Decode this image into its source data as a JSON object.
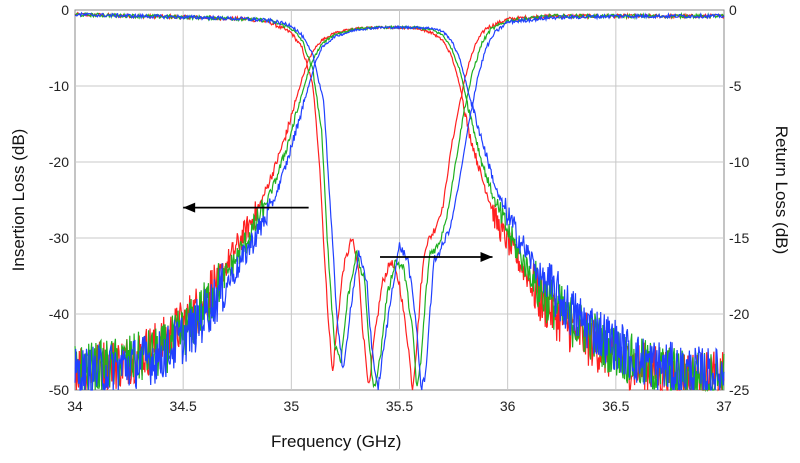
{
  "chart_data": {
    "type": "line",
    "title": "",
    "xlabel": "Frequency (GHz)",
    "ylabel": "Insertion Loss (dB)",
    "ylabel_right": "Return Loss (dB)",
    "xlim": [
      34,
      37
    ],
    "ylim": [
      -50,
      0
    ],
    "ylim_right": [
      -25,
      0
    ],
    "grid": true,
    "x_ticks": [
      34,
      34.5,
      35,
      35.5,
      36,
      36.5,
      37
    ],
    "x_tick_labels": [
      "34",
      "34.5",
      "35",
      "35.5",
      "36",
      "36.5",
      "37"
    ],
    "y_ticks": [
      0,
      -10,
      -20,
      -30,
      -40,
      -50
    ],
    "y_tick_labels": [
      "0",
      "-10",
      "-20",
      "-30",
      "-40",
      "-50"
    ],
    "y_right_ticks": [
      0,
      -5,
      -10,
      -15,
      -20,
      -25
    ],
    "y_right_tick_labels": [
      "0",
      "-5",
      "-10",
      "-15",
      "-20",
      "-25"
    ],
    "colors": [
      "#ff2020",
      "#20b020",
      "#2040ff"
    ],
    "series": [
      {
        "name": "red",
        "color": "#ff2020",
        "insertion_loss": {
          "x": [
            34.0,
            34.2,
            34.4,
            34.55,
            34.65,
            34.75,
            34.85,
            34.92,
            34.98,
            35.02,
            35.05,
            35.08,
            35.11,
            35.14,
            35.2,
            35.3,
            35.4,
            35.5,
            35.58,
            35.65,
            35.7,
            35.74,
            35.78,
            35.82,
            35.88,
            35.95,
            36.05,
            36.15,
            36.3,
            36.45,
            36.6,
            36.8,
            37.0
          ],
          "y": [
            -47,
            -46.5,
            -44,
            -40,
            -36,
            -31,
            -26,
            -21,
            -16,
            -12,
            -9,
            -6.5,
            -5,
            -4,
            -3,
            -2.4,
            -2.3,
            -2.3,
            -2.4,
            -3,
            -4,
            -6,
            -10,
            -16,
            -22,
            -28,
            -33,
            -38,
            -42,
            -45,
            -47,
            -48,
            -48.5
          ]
        },
        "return_loss": {
          "x": [
            34.0,
            34.3,
            34.6,
            34.8,
            34.9,
            35.0,
            35.05,
            35.1,
            35.13,
            35.16,
            35.19,
            35.21,
            35.24,
            35.28,
            35.31,
            35.33,
            35.36,
            35.38,
            35.42,
            35.46,
            35.5,
            35.54,
            35.56,
            35.58,
            35.6,
            35.62,
            35.66,
            35.7,
            35.74,
            35.78,
            35.82,
            35.86,
            35.9,
            36.0,
            36.2,
            36.5,
            36.8,
            37.0
          ],
          "y": [
            -0.3,
            -0.4,
            -0.5,
            -0.6,
            -0.8,
            -1.5,
            -2.5,
            -5,
            -10,
            -18,
            -24,
            -21,
            -17,
            -15,
            -17,
            -21,
            -25,
            -22,
            -18,
            -16.5,
            -18,
            -22,
            -25,
            -22,
            -18,
            -15.5,
            -14.5,
            -13,
            -9,
            -6,
            -3.5,
            -2,
            -1.2,
            -0.6,
            -0.4,
            -0.4,
            -0.4,
            -0.4
          ]
        }
      },
      {
        "name": "green",
        "color": "#20b020",
        "insertion_loss": {
          "x": [
            34.0,
            34.2,
            34.4,
            34.55,
            34.65,
            34.75,
            34.85,
            34.92,
            34.98,
            35.02,
            35.05,
            35.08,
            35.11,
            35.14,
            35.2,
            35.3,
            35.4,
            35.5,
            35.58,
            35.65,
            35.7,
            35.74,
            35.78,
            35.82,
            35.88,
            35.95,
            36.05,
            36.15,
            36.3,
            36.45,
            36.6,
            36.8,
            37.0
          ],
          "y": [
            -47.5,
            -46.5,
            -45,
            -41,
            -37,
            -32.5,
            -27.5,
            -23,
            -18,
            -14,
            -11,
            -8,
            -6,
            -4.5,
            -3.2,
            -2.5,
            -2.3,
            -2.3,
            -2.3,
            -2.6,
            -3.3,
            -5,
            -8,
            -13,
            -20,
            -26,
            -32,
            -37,
            -41,
            -44,
            -46.5,
            -48,
            -48.5
          ]
        },
        "return_loss": {
          "x": [
            34.0,
            34.3,
            34.6,
            34.8,
            34.9,
            35.0,
            35.05,
            35.1,
            35.14,
            35.17,
            35.2,
            35.23,
            35.26,
            35.3,
            35.34,
            35.36,
            35.38,
            35.41,
            35.44,
            35.48,
            35.52,
            35.56,
            35.58,
            35.6,
            35.62,
            35.64,
            35.68,
            35.72,
            35.76,
            35.8,
            35.84,
            35.88,
            35.92,
            36.0,
            36.2,
            36.5,
            36.8,
            37.0
          ],
          "y": [
            -0.3,
            -0.4,
            -0.5,
            -0.6,
            -0.7,
            -1.2,
            -2,
            -4,
            -8,
            -16,
            -22,
            -23,
            -19,
            -16,
            -18,
            -22,
            -25,
            -23,
            -19,
            -16.5,
            -17,
            -21,
            -25,
            -23,
            -19,
            -16,
            -15.5,
            -13.5,
            -10,
            -6.5,
            -4,
            -2.2,
            -1.3,
            -0.7,
            -0.4,
            -0.4,
            -0.4,
            -0.4
          ]
        }
      },
      {
        "name": "blue",
        "color": "#2040ff",
        "insertion_loss": {
          "x": [
            34.0,
            34.2,
            34.4,
            34.55,
            34.65,
            34.75,
            34.85,
            34.92,
            34.98,
            35.02,
            35.05,
            35.08,
            35.11,
            35.14,
            35.2,
            35.3,
            35.4,
            35.5,
            35.58,
            35.65,
            35.7,
            35.74,
            35.78,
            35.82,
            35.88,
            35.95,
            36.05,
            36.15,
            36.3,
            36.45,
            36.6,
            36.8,
            37.0
          ],
          "y": [
            -48,
            -47,
            -45.5,
            -42,
            -38,
            -34,
            -29,
            -25,
            -20,
            -16,
            -13,
            -10,
            -7,
            -5,
            -3.5,
            -2.6,
            -2.3,
            -2.3,
            -2.3,
            -2.4,
            -2.8,
            -4,
            -6.5,
            -11,
            -17,
            -24,
            -30,
            -35,
            -40,
            -43,
            -46,
            -47.5,
            -48
          ]
        },
        "return_loss": {
          "x": [
            34.0,
            34.3,
            34.6,
            34.8,
            34.9,
            35.0,
            35.05,
            35.1,
            35.15,
            35.18,
            35.21,
            35.24,
            35.27,
            35.31,
            35.35,
            35.37,
            35.4,
            35.43,
            35.47,
            35.5,
            35.54,
            35.58,
            35.6,
            35.62,
            35.64,
            35.66,
            35.7,
            35.74,
            35.78,
            35.82,
            35.86,
            35.9,
            35.94,
            36.0,
            36.2,
            36.5,
            36.8,
            37.0
          ],
          "y": [
            -0.3,
            -0.4,
            -0.5,
            -0.6,
            -0.7,
            -1,
            -1.7,
            -3,
            -6,
            -13,
            -20,
            -24,
            -20,
            -16,
            -18,
            -22,
            -25,
            -22,
            -18,
            -15.5,
            -16.5,
            -21,
            -25,
            -24,
            -20,
            -16.5,
            -15.5,
            -14,
            -11,
            -7.5,
            -4.5,
            -2.5,
            -1.5,
            -0.8,
            -0.5,
            -0.4,
            -0.4,
            -0.4
          ]
        }
      }
    ],
    "annotations": [
      {
        "type": "arrow",
        "direction": "left",
        "from": [
          35.08,
          -26
        ],
        "to": [
          34.5,
          -26
        ]
      },
      {
        "type": "arrow",
        "direction": "right",
        "from": [
          35.41,
          -32.5
        ],
        "to": [
          35.93,
          -32.5
        ]
      }
    ]
  }
}
